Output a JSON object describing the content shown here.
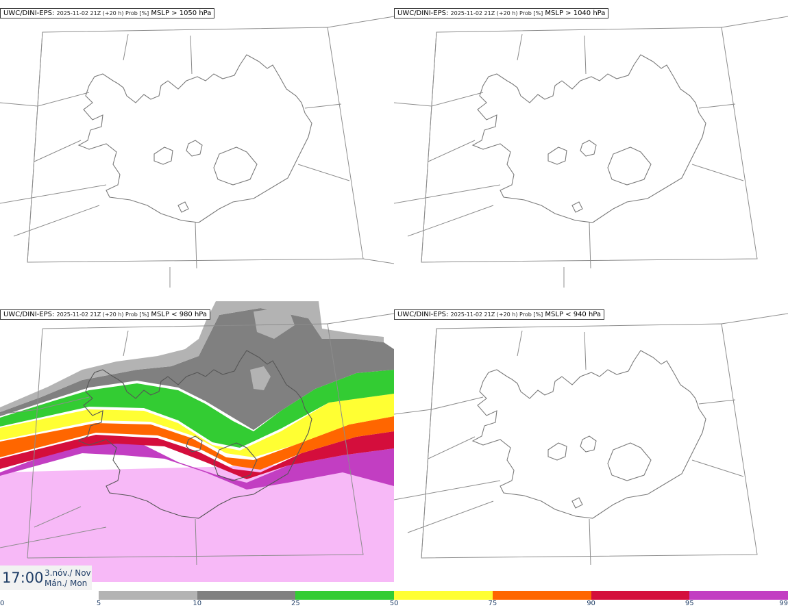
{
  "panels": [
    {
      "id": "p1",
      "title_model": "UWC/DINI-EPS",
      "title_run": "2025-11-02 21Z (+20 h) Prob [%]",
      "title_var": "MSLP > 1050 hPa",
      "filled": false
    },
    {
      "id": "p2",
      "title_model": "UWC/DINI-EPS",
      "title_run": "2025-11-02 21Z (+20 h) Prob [%]",
      "title_var": "MSLP > 1040 hPa",
      "filled": false
    },
    {
      "id": "p3",
      "title_model": "UWC/DINI-EPS",
      "title_run": "2025-11-02 21Z (+20 h) Prob [%]",
      "title_var": "MSLP < 980 hPa",
      "filled": true
    },
    {
      "id": "p4",
      "title_model": "UWC/DINI-EPS",
      "title_run": "2025-11-02 21Z (+20 h) Prob [%]",
      "title_var": "MSLP < 940 hPa",
      "filled": false
    }
  ],
  "valid_time": {
    "time": "17:00",
    "date_line1": "3.nóv./ Nov",
    "date_line2": "Mán./ Mon"
  },
  "colorbar": {
    "ticks": [
      "0",
      "5",
      "10",
      "25",
      "50",
      "75",
      "90",
      "95",
      "99"
    ],
    "colors": [
      "#ffffff",
      "#b3b3b3",
      "#808080",
      "#33cc33",
      "#ffff33",
      "#ff6600",
      "#d40e3c",
      "#c23ec2",
      "#f7b9f7"
    ]
  },
  "colors": {
    "coast": "#7a7a7a",
    "grid": "#8c8c8c",
    "text": "#1f3d66"
  }
}
